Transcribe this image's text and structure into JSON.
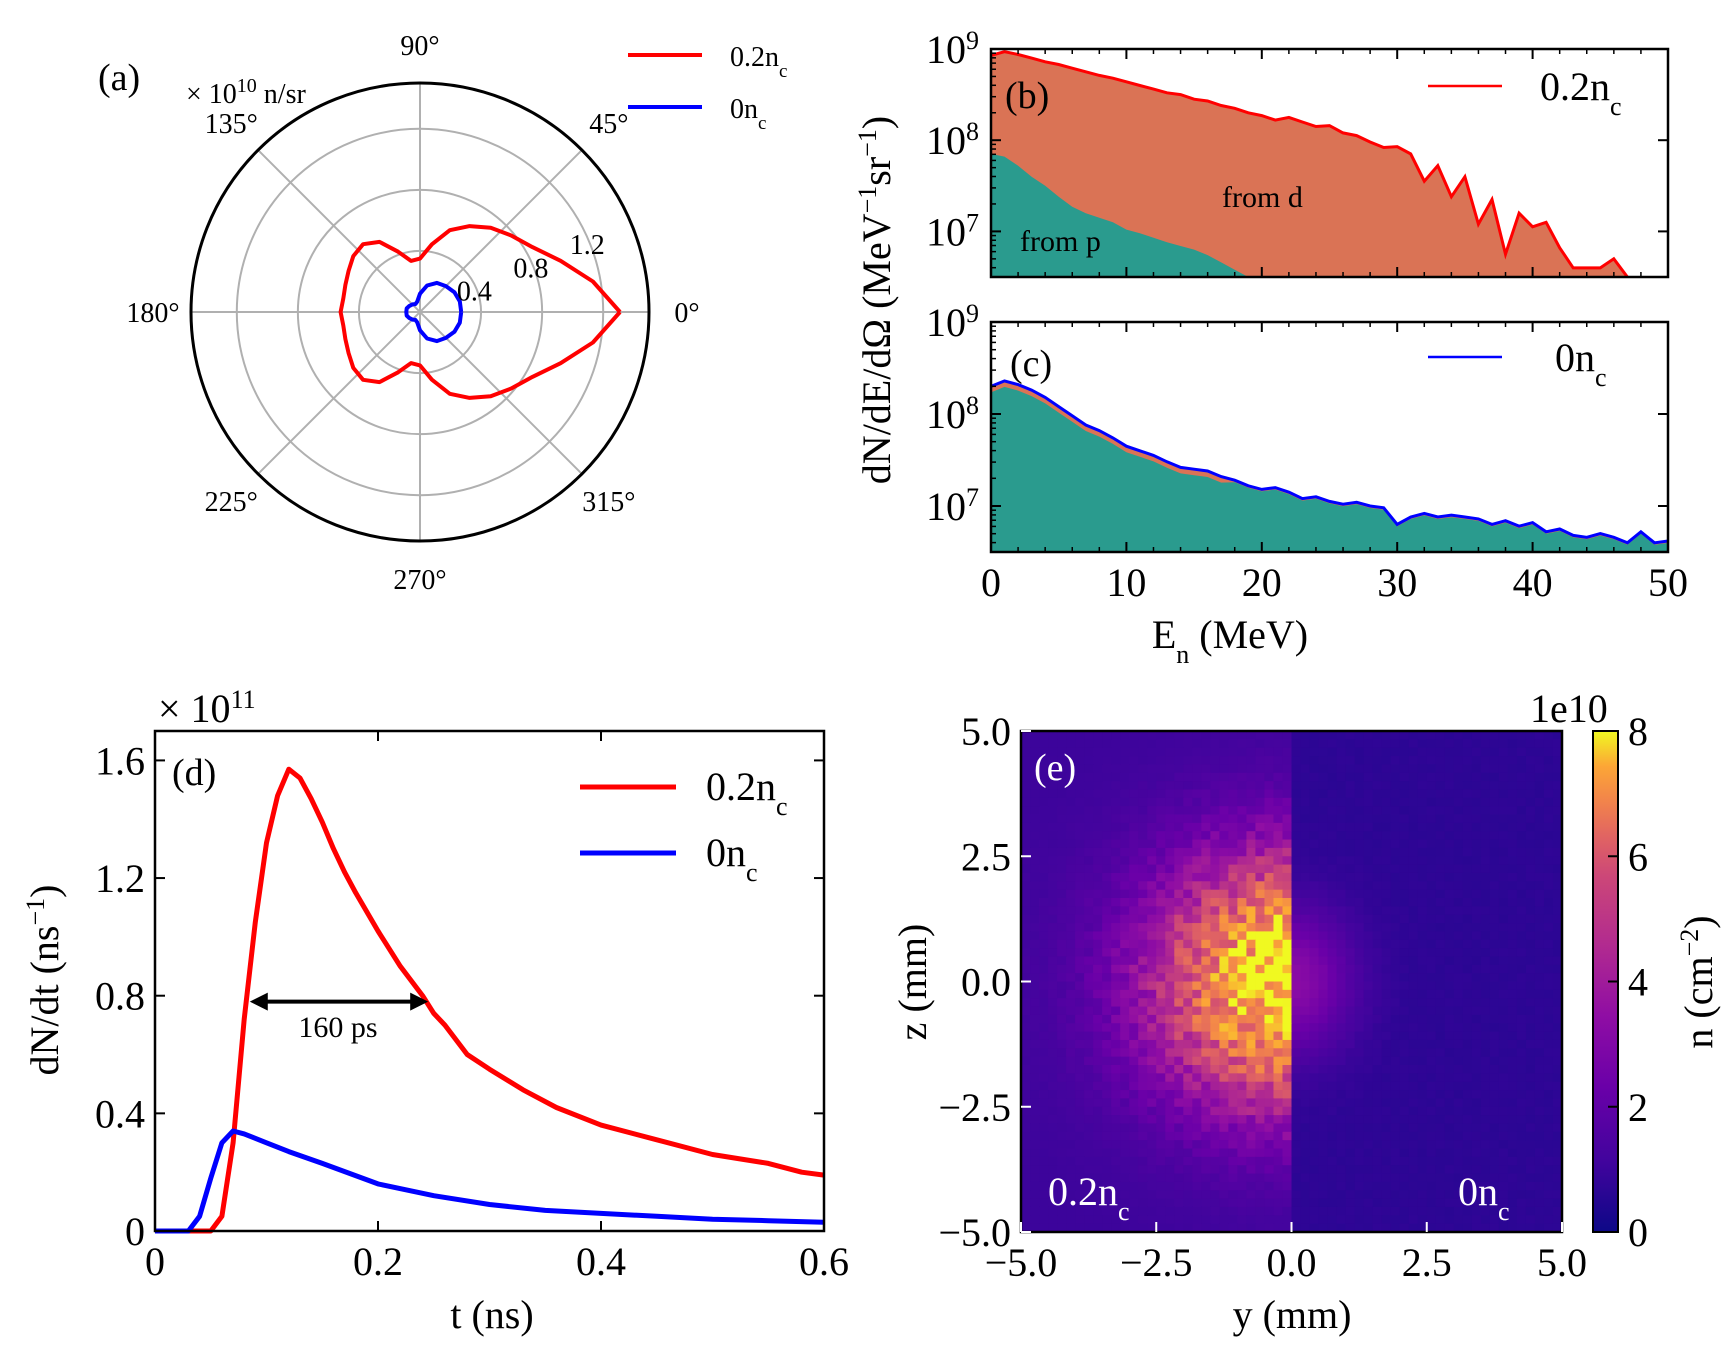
{
  "chart_data": [
    {
      "panel_label": "(a)",
      "type": "polar",
      "unit_label": "× 10",
      "unit_exp": "10",
      "unit_suffix": " n/sr",
      "r_ticks": [
        "0.4",
        "0.8",
        "1.2"
      ],
      "r_max": 1.5,
      "angle_labels": [
        "0°",
        "45°",
        "90°",
        "135°",
        "180°",
        "225°",
        "270°",
        "315°"
      ],
      "series": [
        {
          "name": "0.2n",
          "name_sub": "c",
          "color": "#ff0000",
          "theta_deg": [
            0,
            10,
            20,
            30,
            40,
            50,
            60,
            70,
            80,
            90,
            100,
            110,
            120,
            130,
            140,
            150,
            160,
            170,
            180,
            190,
            200,
            210,
            220,
            230,
            240,
            250,
            260,
            270,
            280,
            290,
            300,
            310,
            320,
            330,
            340,
            350,
            360
          ],
          "r": [
            1.31,
            1.15,
            0.98,
            0.85,
            0.78,
            0.72,
            0.65,
            0.57,
            0.45,
            0.35,
            0.34,
            0.42,
            0.53,
            0.58,
            0.57,
            0.54,
            0.52,
            0.51,
            0.52,
            0.51,
            0.52,
            0.54,
            0.57,
            0.58,
            0.53,
            0.42,
            0.34,
            0.35,
            0.45,
            0.57,
            0.65,
            0.72,
            0.78,
            0.85,
            0.98,
            1.15,
            1.31
          ]
        },
        {
          "name": "0n",
          "name_sub": "c",
          "color": "#0000ff",
          "theta_deg": [
            0,
            15,
            30,
            45,
            60,
            75,
            90,
            105,
            120,
            135,
            150,
            165,
            180,
            195,
            210,
            225,
            240,
            255,
            270,
            285,
            300,
            315,
            330,
            345,
            360
          ],
          "r": [
            0.27,
            0.27,
            0.26,
            0.24,
            0.22,
            0.18,
            0.12,
            0.07,
            0.06,
            0.07,
            0.08,
            0.09,
            0.09,
            0.09,
            0.08,
            0.07,
            0.06,
            0.07,
            0.12,
            0.18,
            0.22,
            0.24,
            0.26,
            0.27,
            0.27
          ]
        }
      ]
    },
    {
      "panel_label": "(b)",
      "type": "area",
      "yscale": "log",
      "ylim_log10": [
        6.5,
        9.0
      ],
      "xlim": [
        0,
        50
      ],
      "y_tick_exps": [
        "7",
        "8",
        "9"
      ],
      "legend": {
        "name": "0.2n",
        "sub": "c"
      },
      "annotations": [
        "from d",
        "from p"
      ],
      "series": [
        {
          "name": "0.2n",
          "name_sub": "c",
          "color": "#ff0000",
          "x": [
            0,
            1,
            2,
            3,
            4,
            5,
            6,
            7,
            8,
            9,
            10,
            11,
            12,
            13,
            14,
            15,
            16,
            17,
            18,
            19,
            20,
            21,
            22,
            23,
            24,
            25,
            26,
            27,
            28,
            29,
            30,
            31,
            32,
            33,
            34,
            35,
            36,
            37,
            38,
            39,
            40,
            41,
            42,
            43,
            44,
            45,
            46,
            47
          ],
          "log10_y": [
            8.93,
            8.97,
            8.94,
            8.9,
            8.86,
            8.83,
            8.79,
            8.75,
            8.71,
            8.68,
            8.64,
            8.6,
            8.56,
            8.52,
            8.5,
            8.45,
            8.43,
            8.38,
            8.35,
            8.3,
            8.27,
            8.22,
            8.25,
            8.2,
            8.15,
            8.16,
            8.08,
            8.05,
            7.98,
            7.92,
            7.93,
            7.85,
            7.55,
            7.72,
            7.38,
            7.6,
            7.08,
            7.35,
            6.75,
            7.2,
            7.05,
            7.1,
            6.82,
            6.6,
            6.6,
            6.6,
            6.7,
            6.5
          ]
        }
      ],
      "fill_total_color": "#da7355",
      "fill_p_color": "#2a9b8e",
      "fill_p": {
        "x": [
          0,
          1,
          2,
          3,
          4,
          5,
          6,
          7,
          8,
          9,
          10,
          11,
          12,
          13,
          14,
          15,
          16,
          17,
          18,
          19
        ],
        "log10_y": [
          7.85,
          7.82,
          7.72,
          7.6,
          7.5,
          7.38,
          7.27,
          7.2,
          7.15,
          7.1,
          7.02,
          6.98,
          6.93,
          6.88,
          6.84,
          6.8,
          6.74,
          6.66,
          6.58,
          6.5
        ]
      }
    },
    {
      "panel_label": "(c)",
      "type": "area",
      "yscale": "log",
      "ylim_log10": [
        6.5,
        9.0
      ],
      "xlim": [
        0,
        50
      ],
      "x_ticks": [
        "0",
        "10",
        "20",
        "30",
        "40",
        "50"
      ],
      "y_tick_exps": [
        "7",
        "8",
        "9"
      ],
      "legend": {
        "name": "0n",
        "sub": "c"
      },
      "series": [
        {
          "name": "0n",
          "name_sub": "c",
          "color": "#0000ff",
          "x": [
            0,
            1,
            2,
            3,
            4,
            5,
            6,
            7,
            8,
            9,
            10,
            11,
            12,
            13,
            14,
            15,
            16,
            17,
            18,
            19,
            20,
            21,
            22,
            23,
            24,
            25,
            26,
            27,
            28,
            29,
            30,
            31,
            32,
            33,
            34,
            35,
            36,
            37,
            38,
            39,
            40,
            41,
            42,
            43,
            44,
            45,
            46,
            47,
            48,
            49,
            50
          ],
          "log10_y": [
            8.3,
            8.36,
            8.32,
            8.26,
            8.18,
            8.08,
            7.98,
            7.88,
            7.82,
            7.74,
            7.65,
            7.6,
            7.55,
            7.48,
            7.42,
            7.4,
            7.38,
            7.32,
            7.28,
            7.22,
            7.18,
            7.2,
            7.15,
            7.08,
            7.1,
            7.05,
            7.02,
            7.04,
            7.0,
            6.98,
            6.8,
            6.88,
            6.92,
            6.88,
            6.9,
            6.88,
            6.86,
            6.8,
            6.84,
            6.78,
            6.82,
            6.72,
            6.75,
            6.68,
            6.66,
            6.7,
            6.66,
            6.6,
            6.72,
            6.6,
            6.62
          ]
        }
      ],
      "fill_color": "#2a9b8e",
      "fill_d_color": "#da7355"
    },
    {
      "panel_label": "(d)",
      "type": "line",
      "xlabel": "t (ns)",
      "ylabel": "dN/dt (ns",
      "ylabel_exp": "−1",
      "ylabel_tail": ")",
      "multiplier": "× 10",
      "multiplier_exp": "11",
      "xlim": [
        0,
        0.6
      ],
      "ylim": [
        0,
        1.7
      ],
      "x_ticks": [
        "0",
        "0.2",
        "0.4",
        "0.6"
      ],
      "y_ticks": [
        "0",
        "0.4",
        "0.8",
        "1.2",
        "1.6"
      ],
      "annotation": "160 ps",
      "fwhm_arrow": [
        0.085,
        0.245,
        0.78
      ],
      "series": [
        {
          "name": "0.2n",
          "name_sub": "c",
          "color": "#ff0000",
          "x": [
            0,
            0.05,
            0.06,
            0.07,
            0.08,
            0.09,
            0.1,
            0.11,
            0.12,
            0.13,
            0.14,
            0.15,
            0.16,
            0.17,
            0.18,
            0.2,
            0.22,
            0.24,
            0.25,
            0.26,
            0.28,
            0.3,
            0.33,
            0.36,
            0.4,
            0.45,
            0.5,
            0.55,
            0.58,
            0.6
          ],
          "y": [
            0,
            0,
            0.05,
            0.3,
            0.72,
            1.05,
            1.32,
            1.48,
            1.57,
            1.54,
            1.47,
            1.39,
            1.3,
            1.22,
            1.15,
            1.02,
            0.9,
            0.8,
            0.74,
            0.7,
            0.6,
            0.55,
            0.48,
            0.42,
            0.36,
            0.31,
            0.26,
            0.23,
            0.2,
            0.19
          ]
        },
        {
          "name": "0n",
          "name_sub": "c",
          "color": "#0000ff",
          "x": [
            0,
            0.03,
            0.04,
            0.05,
            0.06,
            0.07,
            0.08,
            0.1,
            0.12,
            0.15,
            0.2,
            0.25,
            0.3,
            0.35,
            0.4,
            0.45,
            0.5,
            0.55,
            0.6
          ],
          "y": [
            0,
            0,
            0.05,
            0.18,
            0.3,
            0.34,
            0.33,
            0.3,
            0.27,
            0.23,
            0.16,
            0.12,
            0.09,
            0.07,
            0.06,
            0.05,
            0.04,
            0.035,
            0.03
          ]
        }
      ]
    },
    {
      "panel_label": "(e)",
      "type": "heatmap",
      "xlabel": "y (mm)",
      "ylabel": "z (mm)",
      "xlim": [
        -5,
        5
      ],
      "ylim": [
        -5,
        5
      ],
      "x_ticks": [
        "−5.0",
        "−2.5",
        "0.0",
        "2.5",
        "5.0"
      ],
      "y_ticks": [
        "−5.0",
        "−2.5",
        "0.0",
        "2.5",
        "5.0"
      ],
      "colorbar_label": "n (cm",
      "colorbar_exp": "−2",
      "colorbar_tail": ")",
      "colorbar_offset": "1e10",
      "colorbar_ticks": [
        "0",
        "2",
        "4",
        "6",
        "8"
      ],
      "colormap": "plasma",
      "left_label": "0.2n",
      "right_label": "0n",
      "label_sub": "c",
      "left_peak": 7.6,
      "right_peak": 2.0
    }
  ],
  "shared_x_label": "E",
  "shared_x_label_sub": "n",
  "shared_x_label_tail": " (MeV)",
  "shared_y_label": "dN/dE/dΩ (MeV",
  "shared_y_label_exp1": "−1",
  "shared_y_label_mid": "sr",
  "shared_y_label_exp2": "−1",
  "shared_y_label_tail": ")",
  "log_base": "10"
}
